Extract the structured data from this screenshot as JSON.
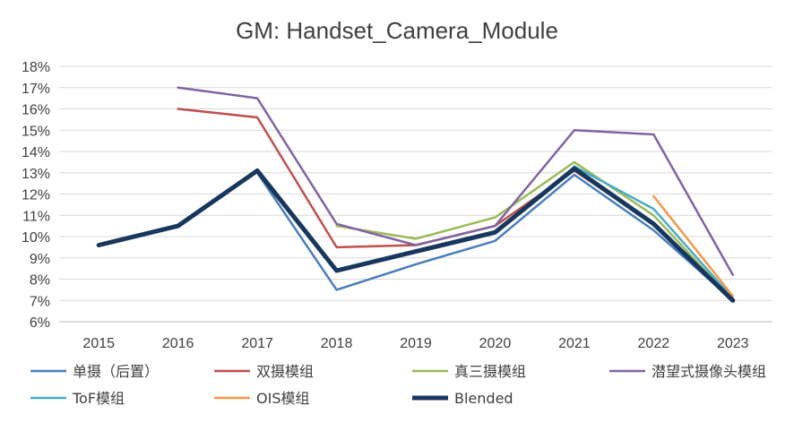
{
  "chart_data": {
    "type": "line",
    "title": "GM: Handset_Camera_Module",
    "xlabel": "",
    "ylabel": "",
    "categories": [
      "2015",
      "2016",
      "2017",
      "2018",
      "2019",
      "2020",
      "2021",
      "2022",
      "2023"
    ],
    "ylim": [
      0.06,
      0.18
    ],
    "yticks": [
      "18%",
      "17%",
      "16%",
      "15%",
      "14%",
      "13%",
      "12%",
      "11%",
      "10%",
      "9%",
      "8%",
      "7%",
      "6%"
    ],
    "grid": true,
    "legend_position": "bottom",
    "series": [
      {
        "name": "单摄（后置）",
        "color": "#4a7ebb",
        "width": 2.5,
        "values": [
          null,
          null,
          0.13,
          0.075,
          0.087,
          0.098,
          0.129,
          0.103,
          0.07
        ]
      },
      {
        "name": "双摄模组",
        "color": "#c0504d",
        "width": 2.5,
        "values": [
          null,
          0.16,
          0.156,
          0.095,
          0.096,
          0.105,
          0.131,
          0.106,
          0.071
        ]
      },
      {
        "name": "真三摄模组",
        "color": "#9bbb59",
        "width": 2.5,
        "values": [
          null,
          null,
          null,
          0.105,
          0.099,
          0.109,
          0.135,
          0.11,
          0.07
        ]
      },
      {
        "name": "潜望式摄像头模组",
        "color": "#8064a2",
        "width": 2.5,
        "values": [
          null,
          0.17,
          0.165,
          0.106,
          0.096,
          0.105,
          0.15,
          0.148,
          0.082
        ]
      },
      {
        "name": "ToF模组",
        "color": "#4bacc6",
        "width": 2.5,
        "values": [
          null,
          null,
          null,
          null,
          null,
          null,
          0.133,
          0.113,
          0.071
        ]
      },
      {
        "name": "OIS模组",
        "color": "#f79646",
        "width": 2.5,
        "values": [
          null,
          null,
          null,
          null,
          null,
          null,
          null,
          0.119,
          0.072
        ]
      },
      {
        "name": "Blended",
        "color": "#17375e",
        "width": 5,
        "values": [
          0.096,
          0.105,
          0.131,
          0.084,
          0.093,
          0.102,
          0.132,
          0.106,
          0.07
        ]
      }
    ]
  }
}
